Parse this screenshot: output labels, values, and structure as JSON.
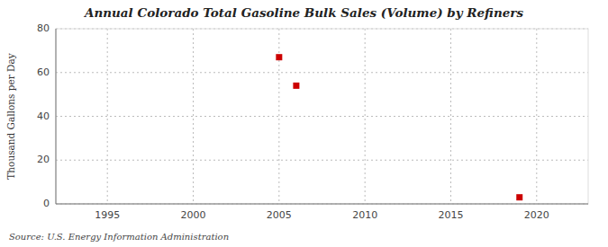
{
  "chart_data": {
    "type": "scatter",
    "title": "Annual Colorado Total Gasoline Bulk Sales (Volume) by Refiners",
    "ylabel": "Thousand Gallons per Day",
    "annotations": [
      "Source: U.S. Energy Information Administration"
    ],
    "x": [
      2005,
      2006,
      2019
    ],
    "values": [
      67.0,
      54.0,
      3.0
    ],
    "color": "#cc0000",
    "marker": "square",
    "xlim": [
      1992,
      2023
    ],
    "ylim": [
      0,
      80
    ],
    "xticks": [
      1995,
      2000,
      2005,
      2010,
      2015,
      2020
    ],
    "yticks": [
      0,
      20,
      40,
      60,
      80
    ],
    "grid": true
  }
}
